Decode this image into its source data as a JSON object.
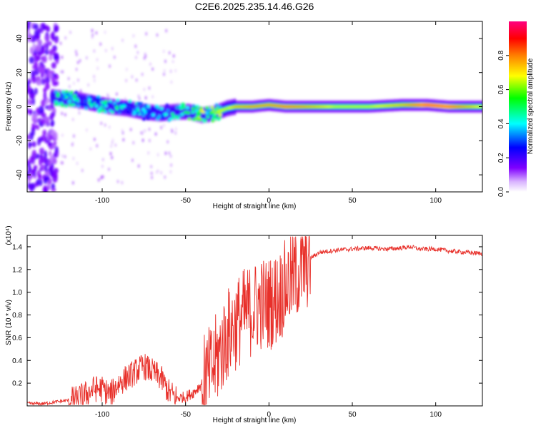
{
  "figure_title": "C2E6.2025.235.14.46.G26",
  "chart_data": [
    {
      "type": "heatmap",
      "xlabel": "Height of straight line (km)",
      "ylabel": "Frequency (Hz)",
      "xlim": [
        -145,
        128
      ],
      "ylim": [
        -50,
        50
      ],
      "xticks": [
        -100,
        -50,
        0,
        50,
        100
      ],
      "yticks": [
        -40,
        -20,
        0,
        20,
        40
      ],
      "colorbar": {
        "label": "Normalized spectral amplitude",
        "range": [
          0,
          1
        ],
        "ticks": [
          0.0,
          0.2,
          0.4,
          0.6,
          0.8
        ],
        "colors": [
          "#ffffff",
          "#d9b3ff",
          "#7f00ff",
          "#0000ff",
          "#00ffff",
          "#00ff00",
          "#ffff00",
          "#ff7f00",
          "#ff0000",
          "#ff0080"
        ]
      },
      "ridge": [
        {
          "x": -125,
          "y": 5,
          "amp": 0.55
        },
        {
          "x": -115,
          "y": 4,
          "amp": 0.5
        },
        {
          "x": -105,
          "y": 2,
          "amp": 0.5
        },
        {
          "x": -95,
          "y": 0,
          "amp": 0.5
        },
        {
          "x": -85,
          "y": -1,
          "amp": 0.45
        },
        {
          "x": -75,
          "y": -3,
          "amp": 0.45
        },
        {
          "x": -65,
          "y": -4,
          "amp": 0.45
        },
        {
          "x": -55,
          "y": -3,
          "amp": 0.5
        },
        {
          "x": -48,
          "y": -3,
          "amp": 0.6
        },
        {
          "x": -40,
          "y": -5,
          "amp": 0.8
        },
        {
          "x": -33,
          "y": -4,
          "amp": 0.7
        },
        {
          "x": -25,
          "y": -1,
          "amp": 0.65
        },
        {
          "x": -20,
          "y": 0,
          "amp": 0.75
        },
        {
          "x": -10,
          "y": 0,
          "amp": 0.8
        },
        {
          "x": 0,
          "y": 1,
          "amp": 0.8
        },
        {
          "x": 10,
          "y": 0,
          "amp": 0.85
        },
        {
          "x": 20,
          "y": 0,
          "amp": 0.8
        },
        {
          "x": 40,
          "y": 0,
          "amp": 0.65
        },
        {
          "x": 60,
          "y": 0,
          "amp": 0.65
        },
        {
          "x": 80,
          "y": 1,
          "amp": 0.75
        },
        {
          "x": 95,
          "y": 1,
          "amp": 0.95
        },
        {
          "x": 108,
          "y": 0,
          "amp": 0.9
        },
        {
          "x": 128,
          "y": 0,
          "amp": 0.65
        }
      ]
    },
    {
      "type": "line",
      "xlabel": "Height of straight line (km)",
      "ylabel": "SNR (10 * v/v)",
      "yscale_label": "(x10⁴)",
      "xlim": [
        -145,
        128
      ],
      "ylim": [
        0,
        1.5
      ],
      "xticks": [
        -100,
        -50,
        0,
        50,
        100
      ],
      "yticks": [
        0.2,
        0.4,
        0.6,
        0.8,
        1.0,
        1.2,
        1.4
      ],
      "line_color": "#e8302a",
      "series": [
        {
          "name": "SNR",
          "x": [
            -145,
            -135,
            -125,
            -115,
            -110,
            -105,
            -100,
            -95,
            -90,
            -85,
            -80,
            -75,
            -70,
            -65,
            -60,
            -55,
            -50,
            -45,
            -40,
            -35,
            -30,
            -25,
            -20,
            -15,
            -10,
            -5,
            0,
            5,
            10,
            15,
            20,
            25,
            30,
            40,
            50,
            60,
            70,
            80,
            85,
            90,
            100,
            110,
            128
          ],
          "y": [
            0.02,
            0.02,
            0.04,
            0.06,
            0.1,
            0.15,
            0.15,
            0.1,
            0.2,
            0.25,
            0.3,
            0.35,
            0.3,
            0.25,
            0.12,
            0.07,
            0.08,
            0.12,
            0.2,
            0.3,
            0.45,
            0.62,
            0.72,
            0.8,
            0.85,
            0.9,
            0.9,
            0.95,
            1.05,
            1.15,
            1.2,
            1.3,
            1.35,
            1.37,
            1.38,
            1.39,
            1.38,
            1.39,
            1.4,
            1.38,
            1.38,
            1.36,
            1.34
          ]
        }
      ]
    }
  ]
}
